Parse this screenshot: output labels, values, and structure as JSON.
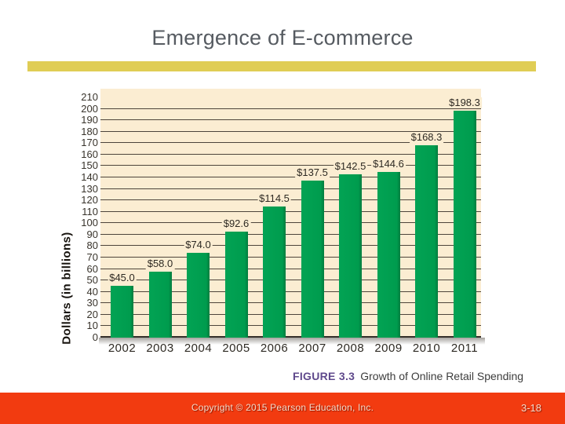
{
  "slide": {
    "title": "Emergence of E-commerce",
    "caption": {
      "figure_label": "FIGURE 3.3",
      "figure_title": "Growth of Online Retail Spending"
    },
    "footer": {
      "copyright": "Copyright © 2015 Pearson Education, Inc.",
      "page": "3-18"
    }
  },
  "chart_data": {
    "type": "bar",
    "title": "Growth of Online Retail Spending",
    "ylabel": "Dollars (in billions)",
    "xlabel": "",
    "categories": [
      "2002",
      "2003",
      "2004",
      "2005",
      "2006",
      "2007",
      "2008",
      "2009",
      "2010",
      "2011"
    ],
    "values": [
      45.0,
      58.0,
      74.0,
      92.6,
      114.5,
      137.5,
      142.5,
      144.6,
      168.3,
      198.3
    ],
    "value_labels": [
      "$45.0",
      "$58.0",
      "$74.0",
      "$92.6",
      "$114.5",
      "$137.5",
      "$142.5",
      "$144.6",
      "$168.3",
      "$198.3"
    ],
    "ylim": [
      0,
      210
    ],
    "ytick_step": 10,
    "grid": true,
    "legend": false,
    "colors": {
      "bar": "#009c4e",
      "plot_background": "#fbedd2",
      "gridline": "#4d453b",
      "accent_divider": "#e0cd55",
      "footer_bar": "#f23b10",
      "figure_label": "#5f498c"
    }
  }
}
